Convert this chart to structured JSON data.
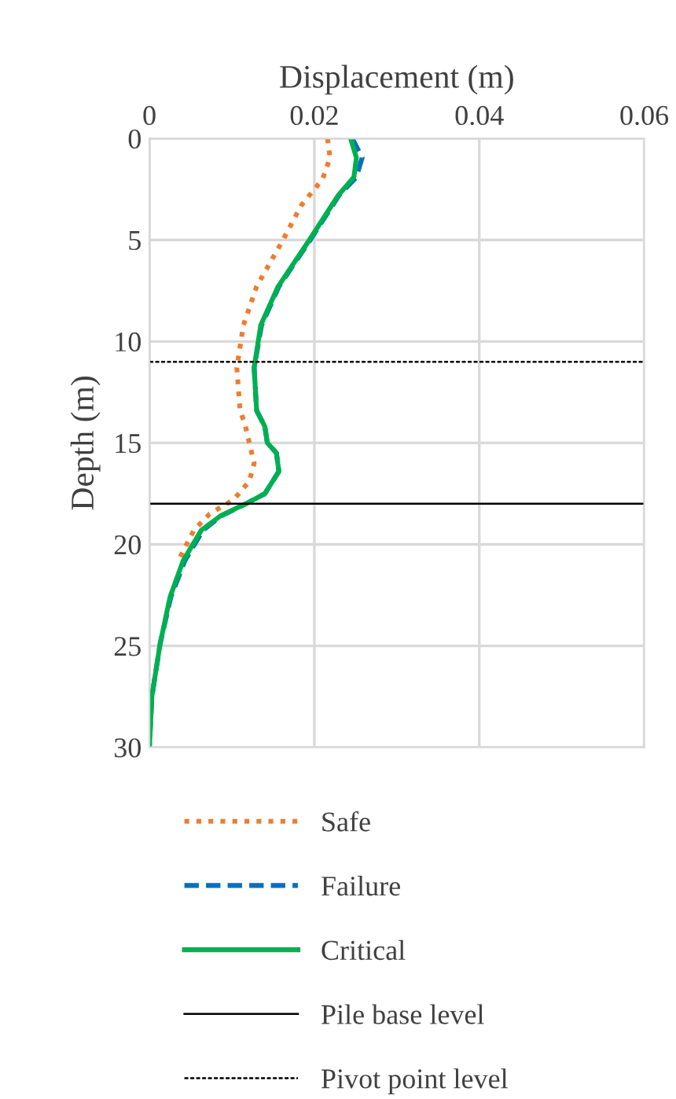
{
  "chart_data": {
    "type": "line",
    "xlabel": "Displacement (m)",
    "ylabel": "Depth (m)",
    "xlim": [
      0,
      0.06
    ],
    "xticks": [
      0,
      0.02,
      0.04,
      0.06
    ],
    "ylim": [
      30,
      0
    ],
    "yticks": [
      0,
      5,
      10,
      15,
      20,
      25,
      30
    ],
    "grid": true,
    "legend": "bottom",
    "marker": "none",
    "series": [
      {
        "name": "Safe",
        "color": "#ed7d31",
        "line_style": "dotted",
        "x": [
          0.0216,
          0.0219,
          0.021,
          0.0184,
          0.0162,
          0.013,
          0.0114,
          0.0106,
          0.011,
          0.0116,
          0.0127,
          0.0121,
          0.0102,
          0.0073,
          0.0054,
          0.0035
        ],
        "values": [
          0,
          0.95,
          2,
          3.3,
          5,
          7.3,
          9.2,
          11.3,
          13.4,
          14.1,
          16,
          16.9,
          17.8,
          18.5,
          19.3,
          20.8
        ]
      },
      {
        "name": "Failure",
        "color": "#0070c0",
        "line_style": "dashed",
        "x": [
          0.0246,
          0.0258,
          0.0251,
          0.023,
          0.0195,
          0.0157,
          0.0136,
          0.0127,
          0.013,
          0.014,
          0.0143,
          0.0154,
          0.0157,
          0.014,
          0.0117,
          0.0087,
          0.0065,
          0.0043,
          0.0026,
          0.0013,
          0.0003,
          0
        ],
        "values": [
          0,
          0.95,
          1.9,
          2.8,
          5,
          7.3,
          9.2,
          11.3,
          13.4,
          14.2,
          15,
          15.5,
          16.4,
          17.5,
          18,
          18.6,
          19.3,
          20.8,
          22.6,
          24.9,
          27.5,
          30
        ]
      },
      {
        "name": "Critical",
        "color": "#00b050",
        "line_style": "solid",
        "x": [
          0.0244,
          0.0251,
          0.0248,
          0.0229,
          0.0194,
          0.0156,
          0.0135,
          0.0127,
          0.013,
          0.014,
          0.0143,
          0.0154,
          0.0157,
          0.014,
          0.0117,
          0.0086,
          0.0063,
          0.0041,
          0.0025,
          0.0013,
          0.0003,
          0
        ],
        "values": [
          0,
          0.95,
          1.9,
          2.8,
          5,
          7.3,
          9.2,
          11.3,
          13.4,
          14.2,
          15,
          15.5,
          16.4,
          17.5,
          18,
          18.6,
          19.3,
          20.8,
          22.6,
          24.9,
          27.5,
          30
        ]
      }
    ],
    "ref_lines": [
      {
        "axis": "y",
        "value": 18,
        "label": "Pile base level",
        "color": "#000000",
        "line_style": "solid"
      },
      {
        "axis": "y",
        "value": 11,
        "label": "Pivot point level",
        "color": "#000000",
        "line_style": "dotted"
      }
    ]
  }
}
